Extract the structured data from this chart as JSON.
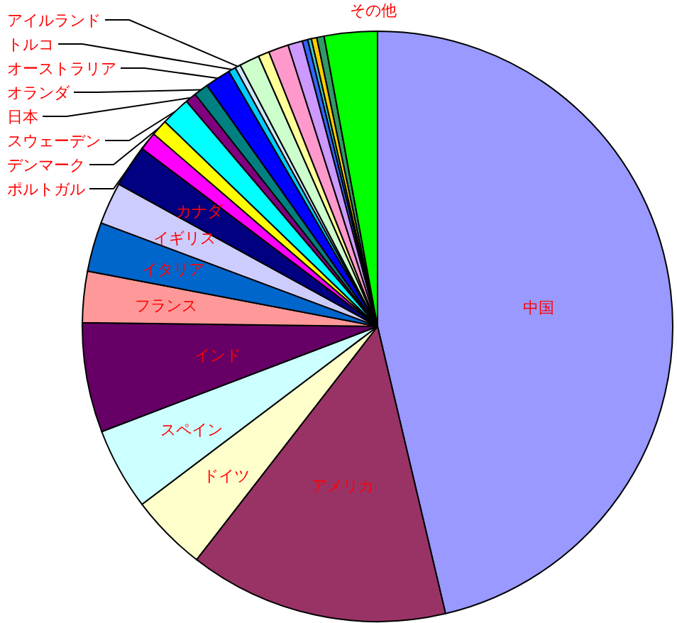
{
  "chart_data": {
    "type": "pie",
    "categories": [
      "中国",
      "アメリカ",
      "ドイツ",
      "スペイン",
      "インド",
      "フランス",
      "イタリア",
      "イギリス",
      "カナダ",
      "ポルトガル",
      "デンマーク",
      "スウェーデン",
      "日本",
      "オランダ",
      "オーストラリア",
      "トルコ",
      "アイルランド",
      null,
      null,
      null,
      null,
      null,
      null,
      null,
      null,
      "その他"
    ],
    "values": [
      46.3,
      14.2,
      4.2,
      4.5,
      6.0,
      2.8,
      2.7,
      2.3,
      2.3,
      1.0,
      0.9,
      1.6,
      0.6,
      0.8,
      1.4,
      0.4,
      0.3,
      1.1,
      0.6,
      1.1,
      0.8,
      0.3,
      0.2,
      0.3,
      0.4,
      2.9
    ],
    "colors": [
      "#9999ff",
      "#993366",
      "#ffffcc",
      "#ccffff",
      "#660066",
      "#ff9999",
      "#0066cc",
      "#ccccff",
      "#000080",
      "#ff00ff",
      "#ffff00",
      "#00ffff",
      "#800080",
      "#008080",
      "#0000ff",
      "#00ccff",
      "#cce6ff",
      "#ccffcc",
      "#ffff99",
      "#ff99cc",
      "#cc99ff",
      "#3366ff",
      "#33cccc",
      "#ffcc00",
      "#339966",
      "#00ff00"
    ]
  }
}
